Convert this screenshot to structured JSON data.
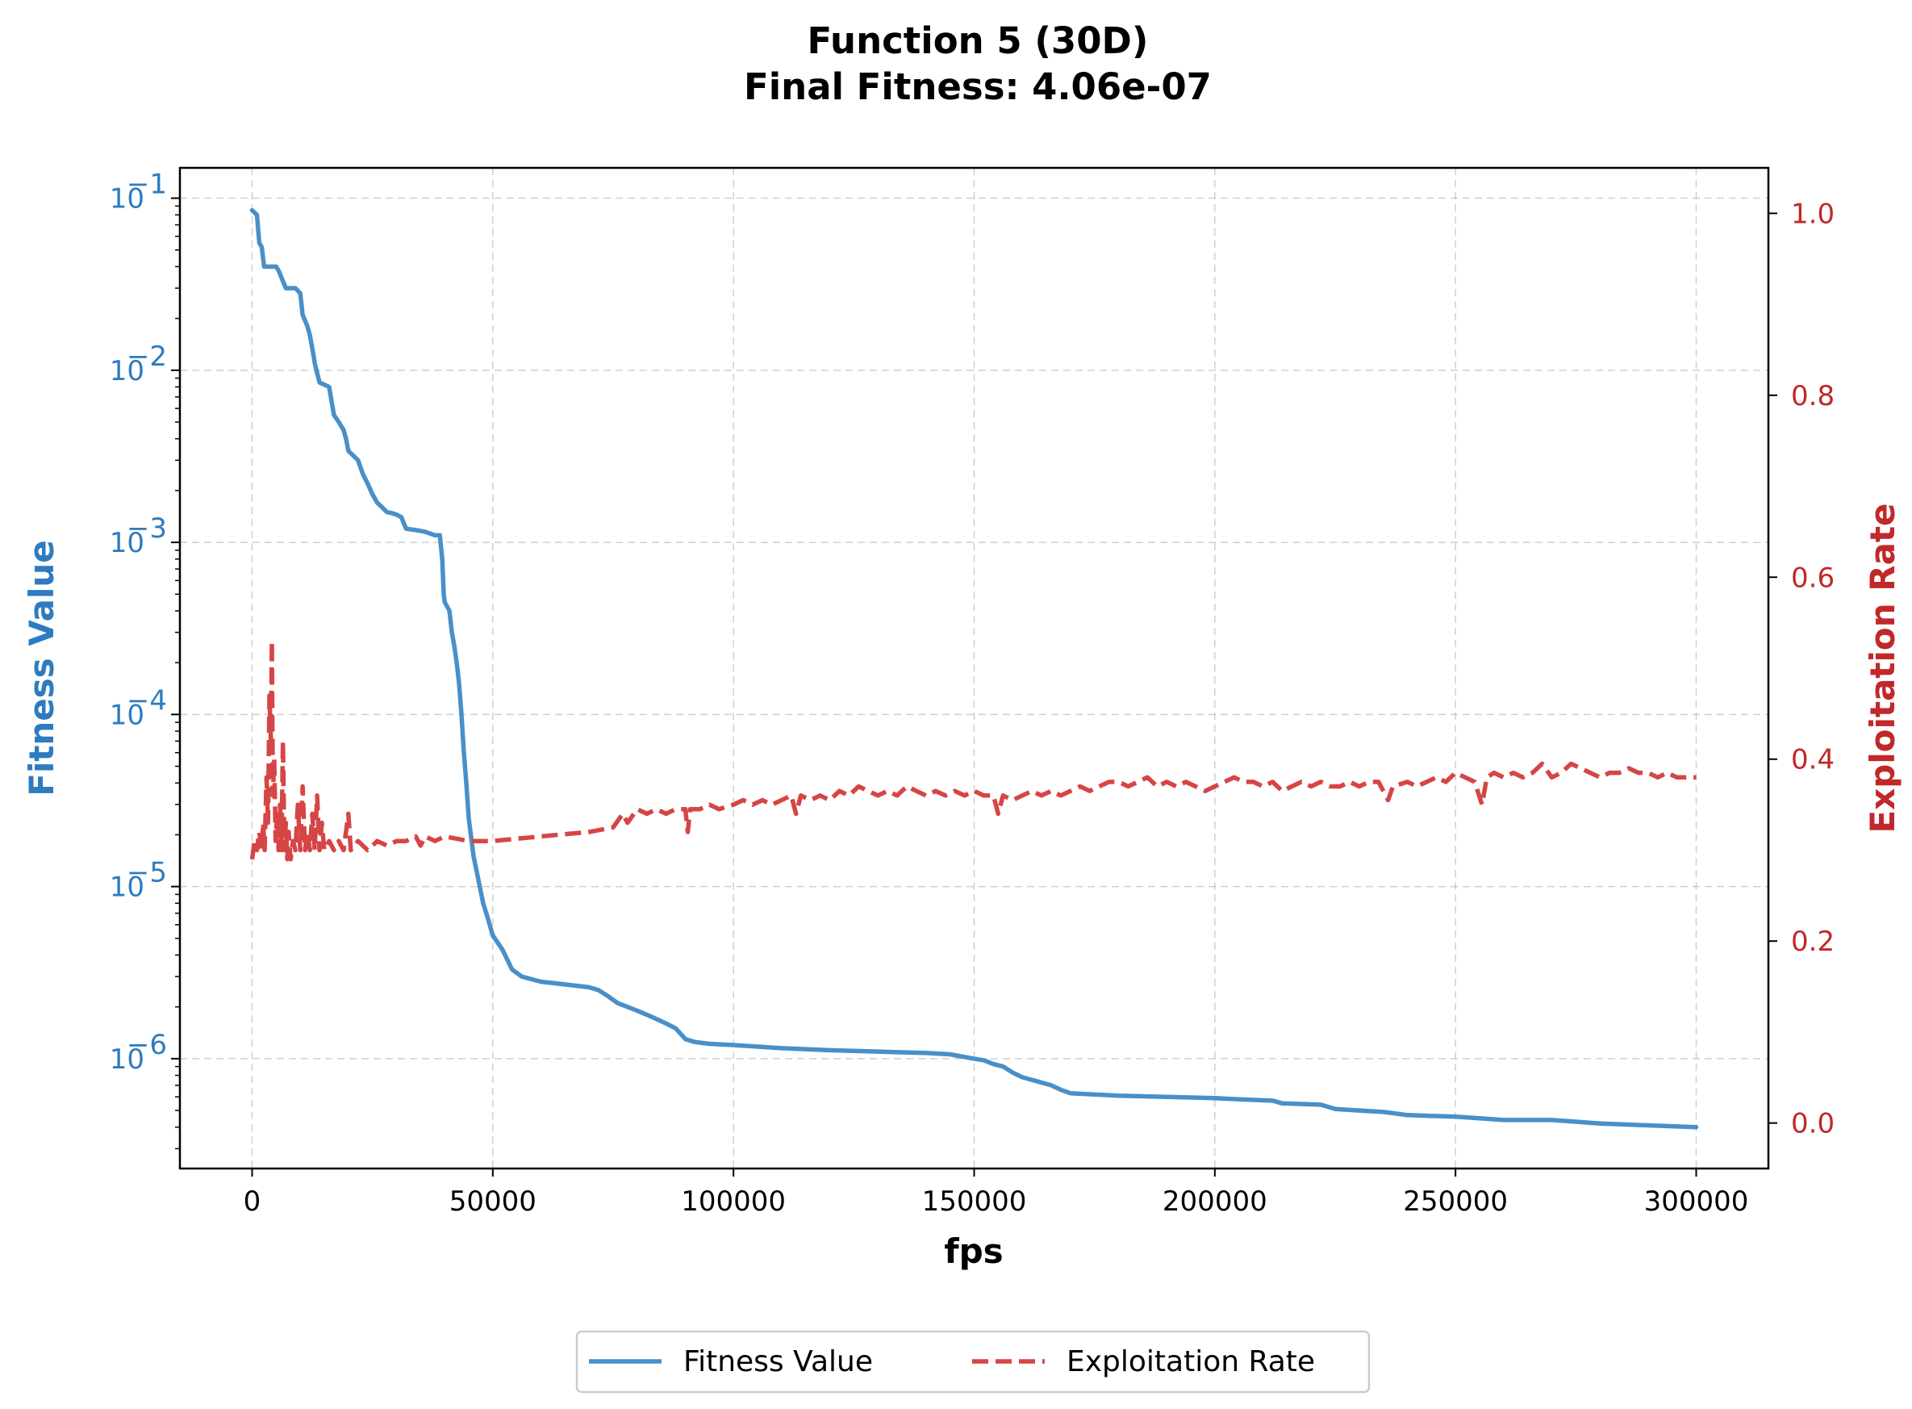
{
  "chart_data": {
    "type": "line",
    "title": "Function 5 (30D)",
    "subtitle": "Final Fitness: 4.06e-07",
    "xlabel": "fps",
    "ylabel_left": "Fitness Value",
    "ylabel_right": "Exploitation Rate",
    "xlim": [
      -15000,
      315000
    ],
    "x_ticks": [
      0,
      50000,
      100000,
      150000,
      200000,
      250000,
      300000
    ],
    "x_tick_labels": [
      "0",
      "50000",
      "100000",
      "150000",
      "200000",
      "250000",
      "300000"
    ],
    "y_left_scale": "log",
    "y_left_lim": [
      2.3e-07,
      0.15
    ],
    "y_left_ticks": [
      1e-06,
      1e-05,
      0.0001,
      0.001,
      0.01,
      0.1
    ],
    "y_left_tick_labels": [
      {
        "base": "10",
        "exp": "−6"
      },
      {
        "base": "10",
        "exp": "−5"
      },
      {
        "base": "10",
        "exp": "−4"
      },
      {
        "base": "10",
        "exp": "−3"
      },
      {
        "base": "10",
        "exp": "−2"
      },
      {
        "base": "10",
        "exp": "−1"
      }
    ],
    "y_right_lim": [
      -0.05,
      1.05
    ],
    "y_right_ticks": [
      0.0,
      0.2,
      0.4,
      0.6,
      0.8,
      1.0
    ],
    "y_right_tick_labels": [
      "0.0",
      "0.2",
      "0.4",
      "0.6",
      "0.8",
      "1.0"
    ],
    "grid": true,
    "legend_position": "bottom-center",
    "colors": {
      "fitness": "#4a8fc7",
      "exploitation": "#d64545",
      "left_axis": "#2e7bbf",
      "right_axis": "#c0282a"
    },
    "series": [
      {
        "name": "Fitness Value",
        "axis": "left",
        "style": "solid",
        "points": [
          [
            0,
            0.085
          ],
          [
            1000,
            0.08
          ],
          [
            1500,
            0.055
          ],
          [
            2000,
            0.052
          ],
          [
            2500,
            0.04
          ],
          [
            5000,
            0.04
          ],
          [
            5500,
            0.038
          ],
          [
            7000,
            0.03
          ],
          [
            9000,
            0.03
          ],
          [
            10000,
            0.028
          ],
          [
            10500,
            0.021
          ],
          [
            11500,
            0.018
          ],
          [
            12000,
            0.016
          ],
          [
            12800,
            0.012
          ],
          [
            13000,
            0.011
          ],
          [
            14000,
            0.0085
          ],
          [
            16000,
            0.008
          ],
          [
            16500,
            0.0066
          ],
          [
            17000,
            0.0055
          ],
          [
            18000,
            0.005
          ],
          [
            19000,
            0.0045
          ],
          [
            19500,
            0.004
          ],
          [
            20000,
            0.0034
          ],
          [
            22000,
            0.003
          ],
          [
            23000,
            0.0025
          ],
          [
            24000,
            0.0022
          ],
          [
            25000,
            0.0019
          ],
          [
            26000,
            0.0017
          ],
          [
            27000,
            0.0016
          ],
          [
            28000,
            0.0015
          ],
          [
            29000,
            0.00148
          ],
          [
            30000,
            0.00145
          ],
          [
            31000,
            0.0014
          ],
          [
            32000,
            0.0012
          ],
          [
            34000,
            0.00118
          ],
          [
            36000,
            0.00115
          ],
          [
            38000,
            0.0011
          ],
          [
            39000,
            0.0011
          ],
          [
            39500,
            0.0008
          ],
          [
            39800,
            0.0005
          ],
          [
            40000,
            0.00045
          ],
          [
            41000,
            0.0004
          ],
          [
            41500,
            0.0003
          ],
          [
            42000,
            0.00025
          ],
          [
            42500,
            0.0002
          ],
          [
            43000,
            0.00015
          ],
          [
            43500,
            0.0001
          ],
          [
            44000,
            6e-05
          ],
          [
            44500,
            4e-05
          ],
          [
            45000,
            2.5e-05
          ],
          [
            46000,
            1.5e-05
          ],
          [
            47000,
            1.1e-05
          ],
          [
            48000,
            8e-06
          ],
          [
            49000,
            6.5e-06
          ],
          [
            50000,
            5.2e-06
          ],
          [
            52000,
            4.3e-06
          ],
          [
            54000,
            3.3e-06
          ],
          [
            56000,
            3e-06
          ],
          [
            60000,
            2.8e-06
          ],
          [
            65000,
            2.7e-06
          ],
          [
            70000,
            2.6e-06
          ],
          [
            72000,
            2.5e-06
          ],
          [
            74000,
            2.3e-06
          ],
          [
            76000,
            2.1e-06
          ],
          [
            78000,
            2e-06
          ],
          [
            80000,
            1.9e-06
          ],
          [
            82000,
            1.8e-06
          ],
          [
            84000,
            1.7e-06
          ],
          [
            86000,
            1.6e-06
          ],
          [
            88000,
            1.5e-06
          ],
          [
            90000,
            1.3e-06
          ],
          [
            92000,
            1.25e-06
          ],
          [
            95000,
            1.22e-06
          ],
          [
            100000,
            1.2e-06
          ],
          [
            110000,
            1.15e-06
          ],
          [
            120000,
            1.12e-06
          ],
          [
            130000,
            1.1e-06
          ],
          [
            140000,
            1.08e-06
          ],
          [
            145000,
            1.06e-06
          ],
          [
            150000,
            1e-06
          ],
          [
            152000,
            9.8e-07
          ],
          [
            154000,
            9.3e-07
          ],
          [
            156000,
            9e-07
          ],
          [
            158000,
            8.3e-07
          ],
          [
            160000,
            7.8e-07
          ],
          [
            163000,
            7.4e-07
          ],
          [
            166000,
            7e-07
          ],
          [
            168000,
            6.6e-07
          ],
          [
            170000,
            6.3e-07
          ],
          [
            175000,
            6.2e-07
          ],
          [
            180000,
            6.1e-07
          ],
          [
            190000,
            6e-07
          ],
          [
            200000,
            5.9e-07
          ],
          [
            205000,
            5.8e-07
          ],
          [
            212000,
            5.7e-07
          ],
          [
            214000,
            5.5e-07
          ],
          [
            222000,
            5.4e-07
          ],
          [
            225000,
            5.1e-07
          ],
          [
            230000,
            5e-07
          ],
          [
            235000,
            4.9e-07
          ],
          [
            240000,
            4.7e-07
          ],
          [
            250000,
            4.6e-07
          ],
          [
            255000,
            4.5e-07
          ],
          [
            260000,
            4.4e-07
          ],
          [
            270000,
            4.4e-07
          ],
          [
            275000,
            4.3e-07
          ],
          [
            280000,
            4.2e-07
          ],
          [
            290000,
            4.1e-07
          ],
          [
            295000,
            4.05e-07
          ],
          [
            300000,
            4e-07
          ]
        ]
      },
      {
        "name": "Exploitation Rate",
        "axis": "right",
        "style": "dashed",
        "points": [
          [
            0,
            0.29
          ],
          [
            500,
            0.31
          ],
          [
            1000,
            0.3
          ],
          [
            1500,
            0.32
          ],
          [
            2000,
            0.3
          ],
          [
            2300,
            0.33
          ],
          [
            2600,
            0.3
          ],
          [
            3000,
            0.38
          ],
          [
            3300,
            0.33
          ],
          [
            3600,
            0.47
          ],
          [
            3900,
            0.42
          ],
          [
            4100,
            0.53
          ],
          [
            4300,
            0.36
          ],
          [
            4600,
            0.4
          ],
          [
            4900,
            0.31
          ],
          [
            5200,
            0.34
          ],
          [
            5500,
            0.3
          ],
          [
            5800,
            0.35
          ],
          [
            6100,
            0.3
          ],
          [
            6400,
            0.42
          ],
          [
            6700,
            0.3
          ],
          [
            7000,
            0.33
          ],
          [
            7300,
            0.29
          ],
          [
            7600,
            0.32
          ],
          [
            8000,
            0.29
          ],
          [
            8500,
            0.31
          ],
          [
            9000,
            0.3
          ],
          [
            9500,
            0.35
          ],
          [
            10000,
            0.3
          ],
          [
            10500,
            0.37
          ],
          [
            11000,
            0.3
          ],
          [
            11500,
            0.32
          ],
          [
            12000,
            0.3
          ],
          [
            12500,
            0.34
          ],
          [
            13000,
            0.3
          ],
          [
            13500,
            0.36
          ],
          [
            14000,
            0.3
          ],
          [
            14500,
            0.33
          ],
          [
            15000,
            0.3
          ],
          [
            16000,
            0.31
          ],
          [
            17000,
            0.3
          ],
          [
            18000,
            0.31
          ],
          [
            19000,
            0.3
          ],
          [
            20000,
            0.34
          ],
          [
            20500,
            0.3
          ],
          [
            22000,
            0.31
          ],
          [
            24000,
            0.3
          ],
          [
            26000,
            0.31
          ],
          [
            28000,
            0.305
          ],
          [
            30000,
            0.31
          ],
          [
            32000,
            0.31
          ],
          [
            34000,
            0.315
          ],
          [
            35000,
            0.305
          ],
          [
            36000,
            0.315
          ],
          [
            38000,
            0.31
          ],
          [
            40000,
            0.315
          ],
          [
            45000,
            0.31
          ],
          [
            50000,
            0.31
          ],
          [
            60000,
            0.315
          ],
          [
            70000,
            0.32
          ],
          [
            75000,
            0.325
          ],
          [
            77000,
            0.34
          ],
          [
            78000,
            0.33
          ],
          [
            80000,
            0.345
          ],
          [
            82000,
            0.34
          ],
          [
            84000,
            0.345
          ],
          [
            86000,
            0.34
          ],
          [
            88000,
            0.345
          ],
          [
            90000,
            0.345
          ],
          [
            90500,
            0.32
          ],
          [
            91000,
            0.345
          ],
          [
            93000,
            0.345
          ],
          [
            95000,
            0.35
          ],
          [
            97000,
            0.345
          ],
          [
            100000,
            0.35
          ],
          [
            102000,
            0.355
          ],
          [
            104000,
            0.35
          ],
          [
            106000,
            0.355
          ],
          [
            108000,
            0.35
          ],
          [
            110000,
            0.355
          ],
          [
            112000,
            0.36
          ],
          [
            113000,
            0.34
          ],
          [
            114000,
            0.36
          ],
          [
            116000,
            0.355
          ],
          [
            118000,
            0.36
          ],
          [
            120000,
            0.355
          ],
          [
            122000,
            0.365
          ],
          [
            124000,
            0.36
          ],
          [
            126000,
            0.37
          ],
          [
            128000,
            0.365
          ],
          [
            130000,
            0.36
          ],
          [
            132000,
            0.365
          ],
          [
            134000,
            0.36
          ],
          [
            136000,
            0.37
          ],
          [
            138000,
            0.365
          ],
          [
            140000,
            0.36
          ],
          [
            142000,
            0.365
          ],
          [
            144000,
            0.36
          ],
          [
            146000,
            0.365
          ],
          [
            148000,
            0.36
          ],
          [
            150000,
            0.365
          ],
          [
            152000,
            0.36
          ],
          [
            154000,
            0.36
          ],
          [
            155000,
            0.34
          ],
          [
            156000,
            0.36
          ],
          [
            158000,
            0.355
          ],
          [
            160000,
            0.36
          ],
          [
            162000,
            0.365
          ],
          [
            164000,
            0.36
          ],
          [
            166000,
            0.365
          ],
          [
            168000,
            0.36
          ],
          [
            170000,
            0.365
          ],
          [
            172000,
            0.37
          ],
          [
            174000,
            0.365
          ],
          [
            176000,
            0.37
          ],
          [
            178000,
            0.375
          ],
          [
            180000,
            0.375
          ],
          [
            182000,
            0.37
          ],
          [
            184000,
            0.375
          ],
          [
            186000,
            0.38
          ],
          [
            188000,
            0.37
          ],
          [
            190000,
            0.375
          ],
          [
            192000,
            0.37
          ],
          [
            194000,
            0.375
          ],
          [
            196000,
            0.37
          ],
          [
            198000,
            0.365
          ],
          [
            200000,
            0.37
          ],
          [
            202000,
            0.375
          ],
          [
            204000,
            0.38
          ],
          [
            206000,
            0.375
          ],
          [
            208000,
            0.375
          ],
          [
            210000,
            0.37
          ],
          [
            212000,
            0.375
          ],
          [
            214000,
            0.365
          ],
          [
            216000,
            0.37
          ],
          [
            218000,
            0.375
          ],
          [
            220000,
            0.37
          ],
          [
            222000,
            0.375
          ],
          [
            224000,
            0.37
          ],
          [
            226000,
            0.37
          ],
          [
            228000,
            0.375
          ],
          [
            230000,
            0.37
          ],
          [
            232000,
            0.375
          ],
          [
            234000,
            0.375
          ],
          [
            236000,
            0.355
          ],
          [
            237000,
            0.37
          ],
          [
            240000,
            0.375
          ],
          [
            242000,
            0.37
          ],
          [
            244000,
            0.375
          ],
          [
            246000,
            0.38
          ],
          [
            248000,
            0.375
          ],
          [
            250000,
            0.385
          ],
          [
            252000,
            0.38
          ],
          [
            254000,
            0.375
          ],
          [
            255500,
            0.35
          ],
          [
            256500,
            0.38
          ],
          [
            258000,
            0.385
          ],
          [
            260000,
            0.38
          ],
          [
            262000,
            0.385
          ],
          [
            264000,
            0.38
          ],
          [
            266000,
            0.385
          ],
          [
            268000,
            0.395
          ],
          [
            270000,
            0.38
          ],
          [
            272000,
            0.385
          ],
          [
            274000,
            0.395
          ],
          [
            276000,
            0.39
          ],
          [
            278000,
            0.385
          ],
          [
            280000,
            0.38
          ],
          [
            282000,
            0.385
          ],
          [
            284000,
            0.385
          ],
          [
            286000,
            0.39
          ],
          [
            288000,
            0.385
          ],
          [
            290000,
            0.385
          ],
          [
            292000,
            0.38
          ],
          [
            294000,
            0.385
          ],
          [
            296000,
            0.38
          ],
          [
            298000,
            0.38
          ],
          [
            300000,
            0.38
          ]
        ]
      }
    ]
  }
}
